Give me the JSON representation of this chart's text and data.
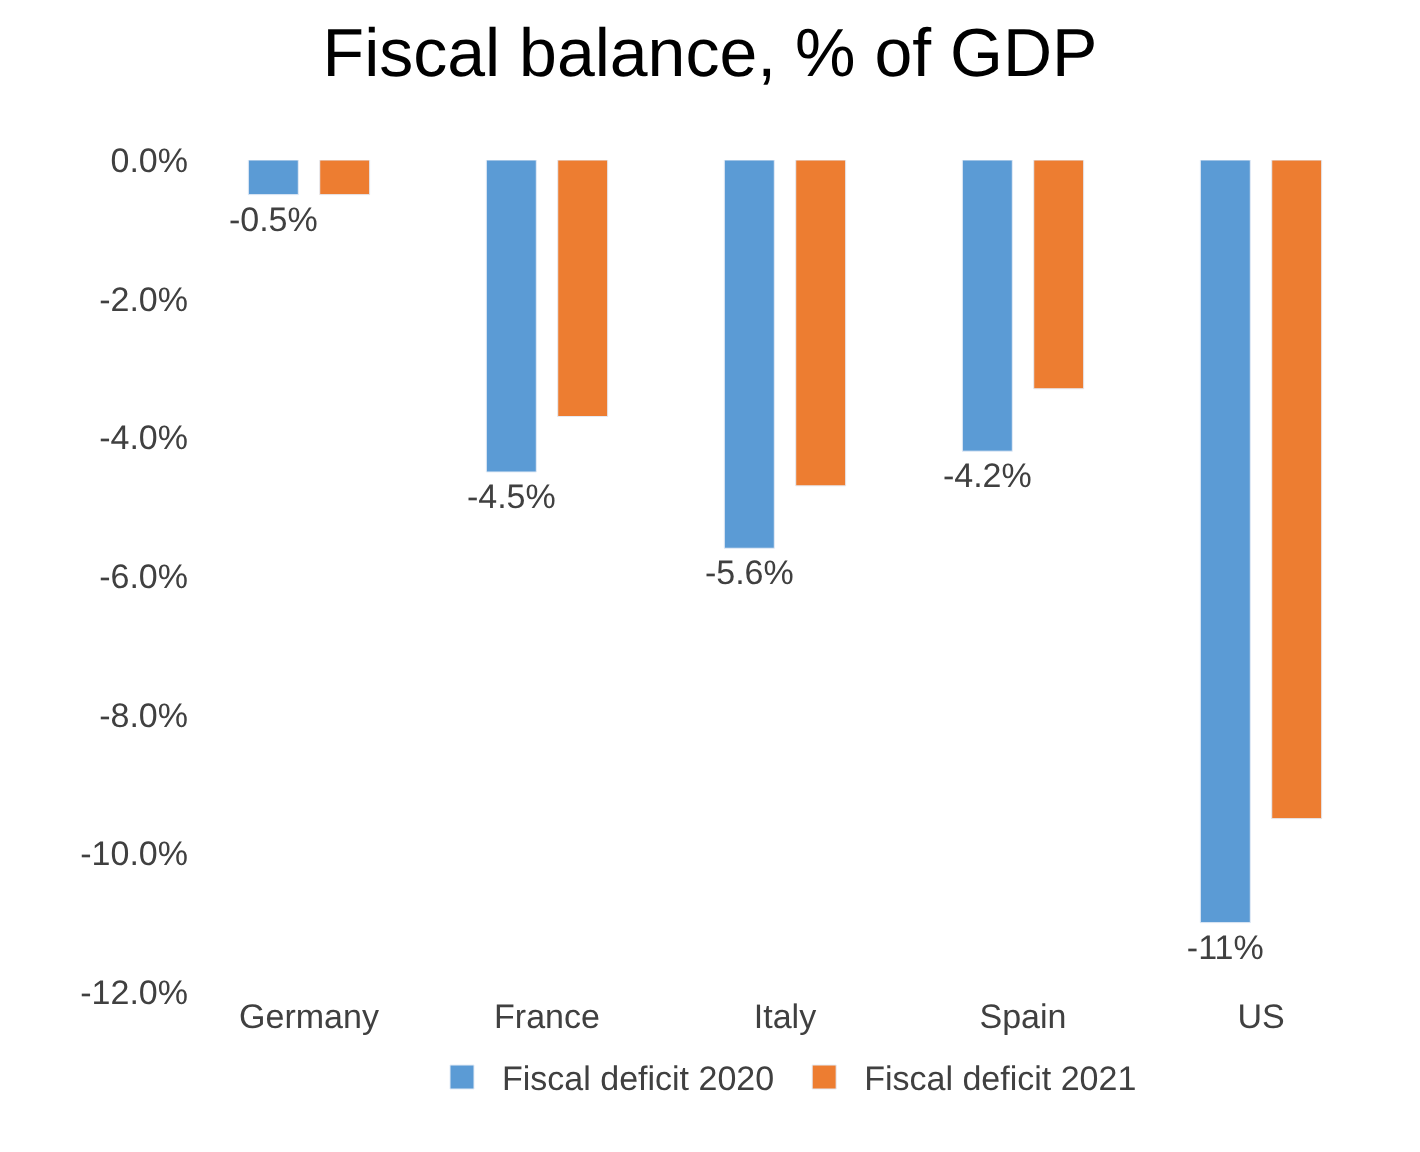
{
  "chart_data": {
    "type": "bar",
    "title": "Fiscal balance, % of GDP",
    "categories": [
      "Germany",
      "France",
      "Italy",
      "Spain",
      "US"
    ],
    "series": [
      {
        "name": "Fiscal deficit 2020",
        "color": "#5b9bd5",
        "values": [
          -0.5,
          -4.5,
          -5.6,
          -4.2,
          -11
        ],
        "value_labels": [
          "-0.5%",
          "-4.5%",
          "-5.6%",
          "-4.2%",
          "-11%"
        ]
      },
      {
        "name": "Fiscal deficit 2021",
        "color": "#ed7d31",
        "values": [
          -0.5,
          -3.7,
          -4.7,
          -3.3,
          -9.5
        ]
      }
    ],
    "ylim": [
      -12,
      0
    ],
    "yticks": [
      {
        "value": 0,
        "label": "0.0%"
      },
      {
        "value": -2,
        "label": "-2.0%"
      },
      {
        "value": -4,
        "label": "-4.0%"
      },
      {
        "value": -6,
        "label": "-6.0%"
      },
      {
        "value": -8,
        "label": "-8.0%"
      },
      {
        "value": -10,
        "label": "-10.0%"
      },
      {
        "value": -12,
        "label": "-12.0%"
      }
    ],
    "legend": "bottom"
  }
}
